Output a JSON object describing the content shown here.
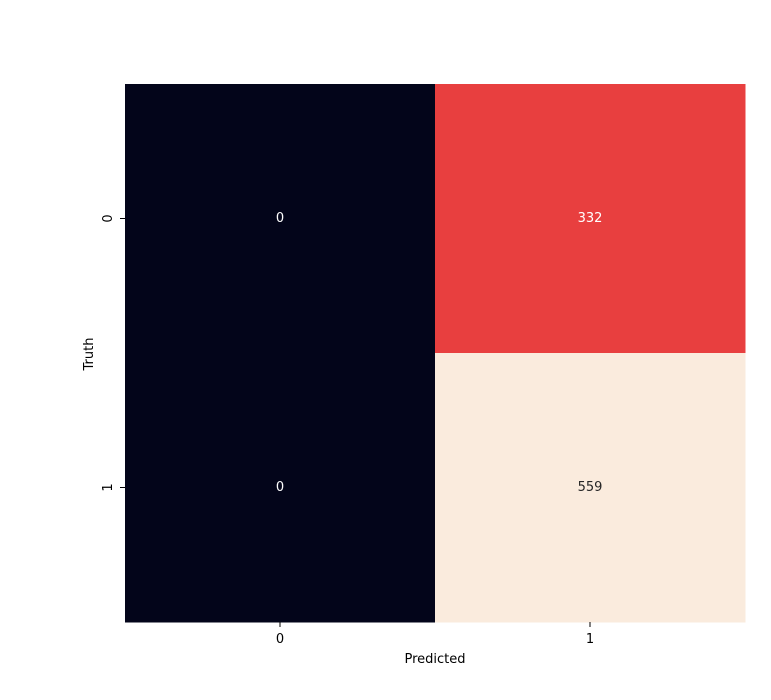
{
  "chart_data": {
    "type": "heatmap",
    "title": "",
    "xlabel": "Predicted",
    "ylabel": "Truth",
    "x_categories": [
      "0",
      "1"
    ],
    "y_categories": [
      "0",
      "1"
    ],
    "values": [
      [
        0,
        332
      ],
      [
        0,
        559
      ]
    ],
    "value_range": [
      0,
      559
    ],
    "colorbar": false,
    "grid": false,
    "cell_colors": [
      [
        "#03051a",
        "#e83f3f"
      ],
      [
        "#03051a",
        "#faebdd"
      ]
    ],
    "cell_text_colors": [
      [
        "#ffffff",
        "#ffffff"
      ],
      [
        "#ffffff",
        "#262626"
      ]
    ]
  }
}
